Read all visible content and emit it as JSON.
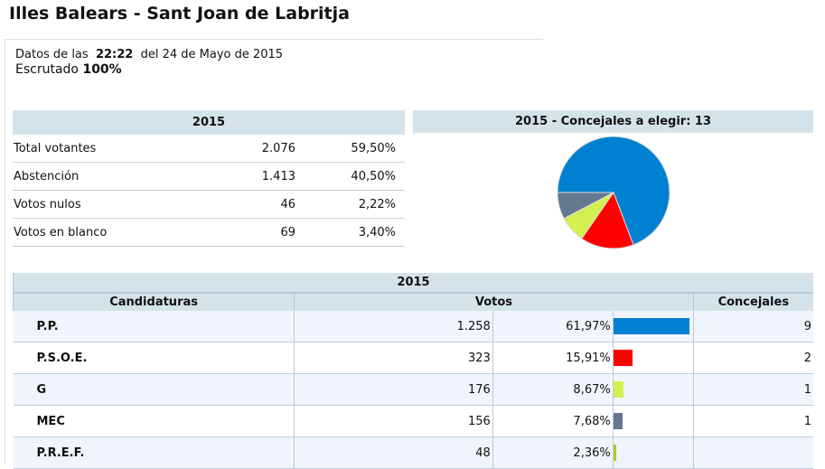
{
  "title": "Illes Balears - Sant Joan de Labritja",
  "info": {
    "datos_prefix": "Datos de las",
    "time": "22:22",
    "date": "del 24 de Mayo de 2015",
    "escrutado_label": "Escrutado",
    "escrutado": "100%"
  },
  "summary": {
    "header": "2015",
    "rows": [
      {
        "label": "Total votantes",
        "value": "2.076",
        "pct": "59,50%"
      },
      {
        "label": "Abstención",
        "value": "1.413",
        "pct": "40,50%"
      },
      {
        "label": "Votos nulos",
        "value": "46",
        "pct": "2,22%"
      },
      {
        "label": "Votos en blanco",
        "value": "69",
        "pct": "3,40%"
      }
    ]
  },
  "pie": {
    "header": "2015 - Concejales a elegir: 13"
  },
  "results": {
    "year": "2015",
    "col_candidaturas": "Candidaturas",
    "col_votos": "Votos",
    "col_concejales": "Concejales",
    "rows": [
      {
        "name": "P.P.",
        "votes": "1.258",
        "pct": "61,97%",
        "pct_value": 61.97,
        "seats": "9",
        "seats_value": 9,
        "color": "#0080d0"
      },
      {
        "name": "P.S.O.E.",
        "votes": "323",
        "pct": "15,91%",
        "pct_value": 15.91,
        "seats": "2",
        "seats_value": 2,
        "color": "#ff0000"
      },
      {
        "name": "G",
        "votes": "176",
        "pct": "8,67%",
        "pct_value": 8.67,
        "seats": "1",
        "seats_value": 1,
        "color": "#d4f050"
      },
      {
        "name": "MEC",
        "votes": "156",
        "pct": "7,68%",
        "pct_value": 7.68,
        "seats": "1",
        "seats_value": 1,
        "color": "#64788f"
      },
      {
        "name": "P.R.E.F.",
        "votes": "48",
        "pct": "2,36%",
        "pct_value": 2.36,
        "seats": "",
        "seats_value": 0,
        "color": "#a8d020"
      }
    ]
  }
}
